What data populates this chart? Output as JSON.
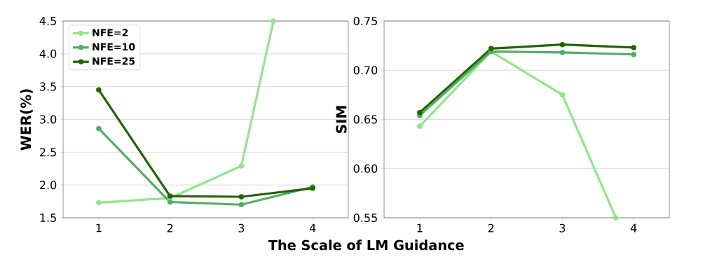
{
  "chart_data": [
    {
      "type": "line",
      "xlabel": "The Scale of LM Guidance",
      "ylabel": "WER(%)",
      "x": [
        1,
        2,
        3,
        4
      ],
      "xlim": [
        0.5,
        4.5
      ],
      "ylim": [
        1.5,
        4.5
      ],
      "xticks": [
        1,
        2,
        3,
        4
      ],
      "yticks": [
        1.5,
        {
          "value": 2,
          "label": "2.0"
        },
        2.5,
        {
          "value": 3,
          "label": "3.0"
        },
        3.5,
        {
          "value": 4,
          "label": "4.0"
        },
        4.5
      ],
      "grid": "y",
      "legend": "top left",
      "marker": "circle",
      "series": [
        {
          "name": "NFE=2",
          "color": "#90e68a",
          "x": [
            1,
            2,
            3,
            3.45
          ],
          "values": [
            1.73,
            1.8,
            2.29,
            4.5
          ]
        },
        {
          "name": "NFE=10",
          "color": "#4fae68",
          "values": [
            2.86,
            1.74,
            1.7,
            1.97
          ]
        },
        {
          "name": "NFE=25",
          "color": "#236300",
          "values": [
            3.45,
            1.83,
            1.82,
            1.95
          ]
        }
      ]
    },
    {
      "type": "line",
      "ylabel": "SIM",
      "x": [
        1,
        2,
        3,
        4
      ],
      "xlim": [
        0.5,
        4.5
      ],
      "ylim": [
        0.55,
        0.75
      ],
      "xticks": [
        1,
        2,
        3,
        4
      ],
      "yticks": [
        0.55,
        {
          "value": 0.6,
          "label": "0.60"
        },
        0.65,
        {
          "value": 0.7,
          "label": "0.70"
        },
        0.75
      ],
      "grid": "y",
      "marker": "circle",
      "series": [
        {
          "color": "#90e68a",
          "x": [
            1,
            2,
            3,
            3.75
          ],
          "values": [
            0.643,
            0.719,
            0.675,
            0.55
          ]
        },
        {
          "color": "#4fae68",
          "values": [
            0.654,
            0.719,
            0.718,
            0.716
          ]
        },
        {
          "color": "#236300",
          "values": [
            0.657,
            0.722,
            0.726,
            0.723
          ]
        }
      ]
    }
  ]
}
